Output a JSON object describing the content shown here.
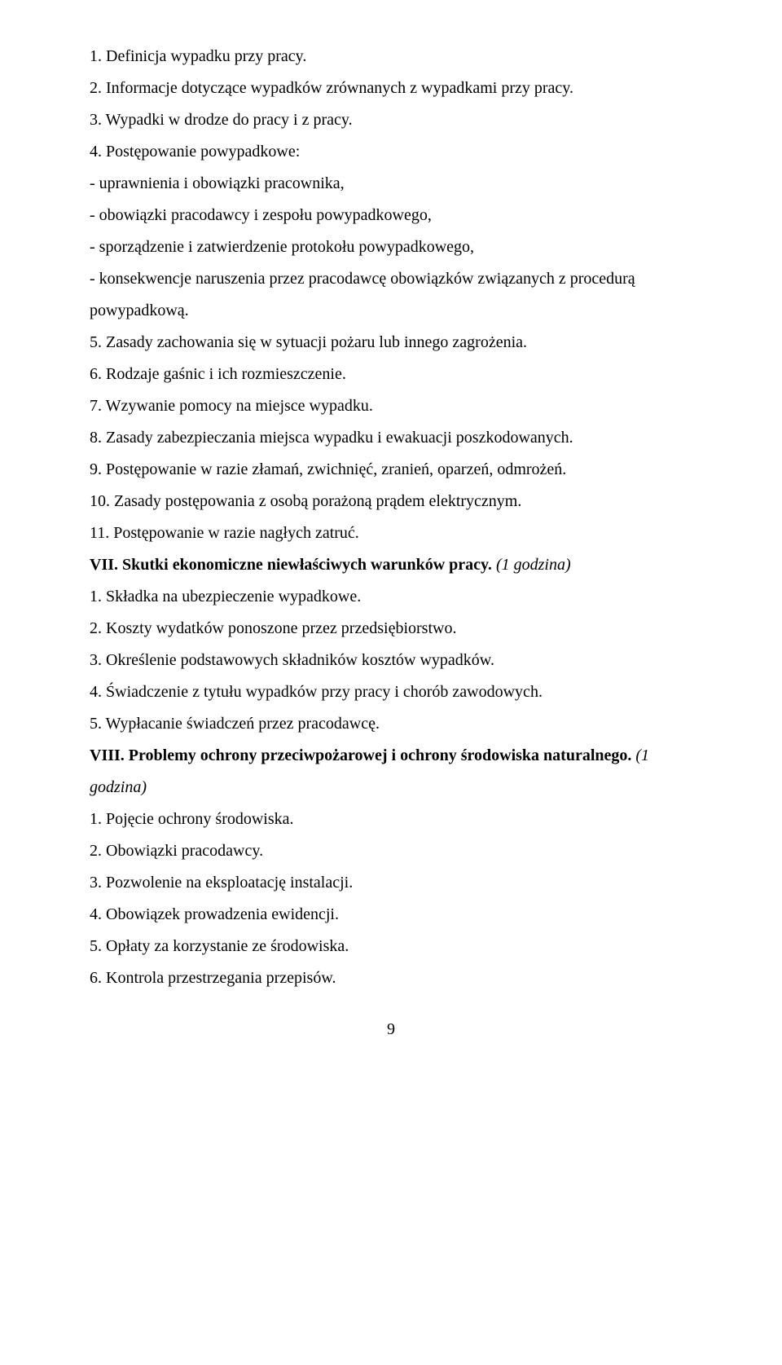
{
  "lines": [
    {
      "text": "1. Definicja wypadku przy pracy."
    },
    {
      "text": "2. Informacje dotyczące wypadków zrównanych z wypadkami przy pracy."
    },
    {
      "text": "3. Wypadki w drodze do pracy i z pracy."
    },
    {
      "text": "4. Postępowanie powypadkowe:"
    },
    {
      "text": "- uprawnienia i obowiązki pracownika,"
    },
    {
      "text": "- obowiązki pracodawcy i zespołu powypadkowego,"
    },
    {
      "text": "- sporządzenie i zatwierdzenie protokołu powypadkowego,"
    },
    {
      "text": "- konsekwencje naruszenia przez pracodawcę obowiązków związanych z procedurą"
    },
    {
      "text": "powypadkową."
    },
    {
      "text": "5. Zasady zachowania się w sytuacji pożaru lub innego zagrożenia."
    },
    {
      "text": "6. Rodzaje gaśnic i ich rozmieszczenie."
    },
    {
      "text": "7. Wzywanie pomocy na miejsce wypadku."
    },
    {
      "text": "8. Zasady zabezpieczania miejsca wypadku i ewakuacji poszkodowanych."
    },
    {
      "text": "9. Postępowanie w razie złamań, zwichnięć, zranień, oparzeń, odmrożeń."
    },
    {
      "text": "10. Zasady postępowania z osobą porażoną prądem elektrycznym."
    },
    {
      "text": "11. Postępowanie w razie nagłych zatruć."
    }
  ],
  "section7": {
    "bold": "VII. Skutki ekonomiczne niewłaściwych warunków pracy. ",
    "italic": "(1 godzina)"
  },
  "section7_items": [
    {
      "text": "1. Składka na ubezpieczenie wypadkowe."
    },
    {
      "text": "2. Koszty wydatków ponoszone przez przedsiębiorstwo."
    },
    {
      "text": "3. Określenie podstawowych składników kosztów wypadków."
    },
    {
      "text": "4. Świadczenie z tytułu wypadków przy pracy i chorób zawodowych."
    },
    {
      "text": "5. Wypłacanie świadczeń przez pracodawcę."
    }
  ],
  "section8": {
    "bold": "VIII. Problemy ochrony przeciwpożarowej i ochrony środowiska naturalnego. ",
    "italic": "(1 godzina)"
  },
  "section8_items": [
    {
      "text": "1. Pojęcie ochrony środowiska."
    },
    {
      "text": "2. Obowiązki pracodawcy."
    },
    {
      "text": "3. Pozwolenie na eksploatację instalacji."
    },
    {
      "text": "4. Obowiązek prowadzenia ewidencji."
    },
    {
      "text": "5. Opłaty za korzystanie ze środowiska."
    },
    {
      "text": "6. Kontrola przestrzegania przepisów."
    }
  ],
  "page_number": "9"
}
